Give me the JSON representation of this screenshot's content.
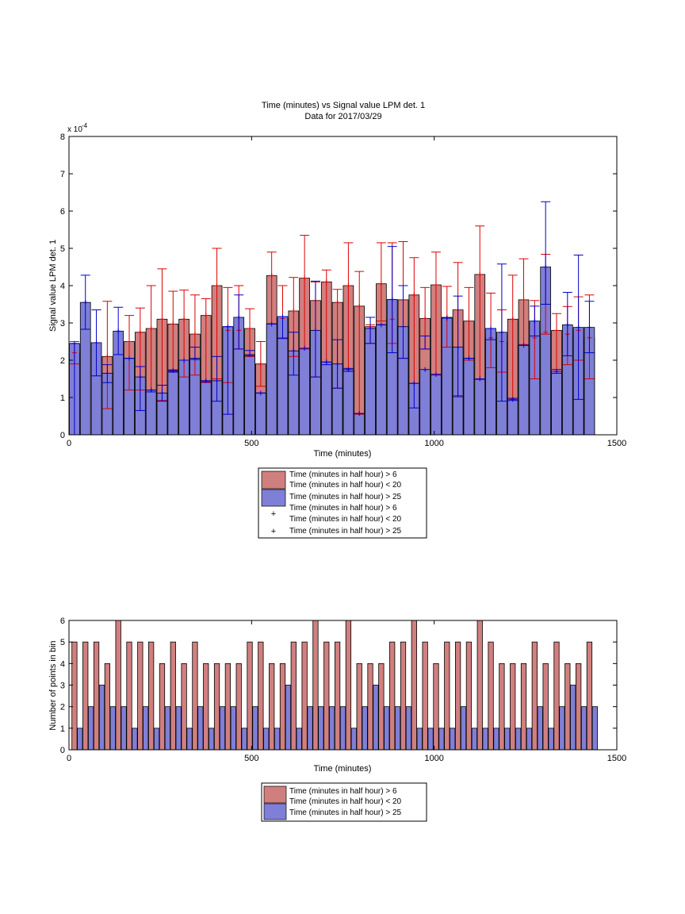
{
  "colors": {
    "group_a": "#d07f7f",
    "group_b": "#7f7fd7",
    "err_a": "#dd0000",
    "err_b": "#0000cc"
  },
  "chart_data": [
    {
      "type": "bar",
      "title": "Time (minutes) vs Signal value LPM det. 1",
      "subtitle": "Data for 2017/03/29",
      "xlabel": "Time (minutes)",
      "ylabel": "Signal value LPM det. 1",
      "y_exponent": "x 10^-4",
      "y_exponent_base": "x 10",
      "y_exponent_power": "-4",
      "xlim": [
        0,
        1500
      ],
      "ylim": [
        0,
        8
      ],
      "xticks": [
        "0",
        "500",
        "1000",
        "1500"
      ],
      "yticks": [
        "0",
        "1",
        "2",
        "3",
        "4",
        "5",
        "6",
        "7",
        "8"
      ],
      "grid": false,
      "legend_position": "below",
      "legend": [
        "Time (minutes in half hour) > 6\nTime (minutes in half hour) < 20",
        "Time (minutes in half hour) > 25",
        "Time (minutes in half hour) > 6\nTime (minutes in half hour) < 20",
        "Time (minutes in half hour) > 25"
      ],
      "series": [
        {
          "x": [
            15,
            105,
            165,
            195,
            225,
            255,
            285,
            315,
            345,
            375,
            405,
            435,
            465,
            495,
            525,
            555,
            585,
            615,
            645,
            675,
            705,
            735,
            765,
            795,
            825,
            855,
            885,
            915,
            945,
            975,
            1005,
            1035,
            1065,
            1095,
            1125,
            1155,
            1185,
            1215,
            1245,
            1275,
            1305,
            1335,
            1365,
            1395,
            1425
          ],
          "values": [
            2.2,
            2.1,
            2.5,
            2.75,
            2.85,
            3.1,
            2.97,
            3.1,
            2.7,
            3.2,
            4.0,
            2.8,
            2.8,
            2.85,
            1.9,
            4.27,
            3.12,
            3.32,
            4.2,
            3.6,
            4.1,
            3.55,
            4.0,
            3.45,
            2.9,
            4.05,
            3.1,
            3.62,
            3.75,
            3.12,
            4.02,
            3.15,
            3.35,
            3.05,
            4.3,
            2.6,
            2.5,
            3.1,
            3.62,
            2.6,
            2.75,
            2.8,
            2.7,
            2.8,
            2.6
          ],
          "err_low": [
            1.9,
            0.7,
            1.2,
            1.2,
            1.2,
            0.92,
            1.7,
            1.55,
            1.6,
            1.4,
            1.5,
            1.4,
            2.3,
            2.1,
            1.3,
            2.98,
            2.6,
            2.1,
            2.3,
            1.55,
            1.95,
            1.25,
            1.75,
            0.55,
            2.45,
            3.05,
            2.45,
            2.05,
            1.38,
            2.3,
            1.6,
            2.35,
            1.05,
            2.0,
            1.48,
            1.8,
            1.68,
            0.95,
            2.42,
            1.5,
            2.7,
            1.7,
            1.88,
            2.0,
            1.5
          ],
          "err_high": [
            2.5,
            3.58,
            3.2,
            3.4,
            4.0,
            4.45,
            3.85,
            3.88,
            3.75,
            3.65,
            5.0,
            3.95,
            4.0,
            3.38,
            2.5,
            4.9,
            4.0,
            4.22,
            5.35,
            4.1,
            4.42,
            3.9,
            5.15,
            4.38,
            2.95,
            5.15,
            5.15,
            5.18,
            4.75,
            3.95,
            4.9,
            3.98,
            4.62,
            3.95,
            5.6,
            3.8,
            3.35,
            4.28,
            4.72,
            3.6,
            4.84,
            3.25,
            3.44,
            3.7,
            3.75
          ]
        },
        {
          "x": [
            15,
            45,
            75,
            105,
            135,
            165,
            195,
            225,
            255,
            285,
            315,
            345,
            375,
            405,
            435,
            465,
            495,
            525,
            555,
            585,
            615,
            645,
            675,
            705,
            735,
            765,
            795,
            825,
            855,
            885,
            915,
            945,
            975,
            1005,
            1035,
            1065,
            1095,
            1125,
            1155,
            1185,
            1215,
            1245,
            1275,
            1305,
            1335,
            1365,
            1395,
            1425
          ],
          "values": [
            2.45,
            3.55,
            2.47,
            1.65,
            2.78,
            2.05,
            1.55,
            1.2,
            1.12,
            1.72,
            2.0,
            2.05,
            1.45,
            1.45,
            2.9,
            3.15,
            2.15,
            1.12,
            2.97,
            3.17,
            2.25,
            2.32,
            2.8,
            1.95,
            1.9,
            1.75,
            0.57,
            2.85,
            2.95,
            3.63,
            2.9,
            1.38,
            1.75,
            1.62,
            3.13,
            2.35,
            2.05,
            1.5,
            2.85,
            2.75,
            0.95,
            2.4,
            3.05,
            4.5,
            1.7,
            2.95,
            2.88,
            2.88
          ],
          "err_low": [
            0,
            2.83,
            1.58,
            1.4,
            2.15,
            2.05,
            0.65,
            1.15,
            0.9,
            1.68,
            2.0,
            2.02,
            1.42,
            0.9,
            0.55,
            2.3,
            2.12,
            1.12,
            2.97,
            2.58,
            1.6,
            2.32,
            1.55,
            1.88,
            1.25,
            1.7,
            0.57,
            2.45,
            2.95,
            2.2,
            2.05,
            0.72,
            2.3,
            1.62,
            3.13,
            1.02,
            2.05,
            1.5,
            2.55,
            0.9,
            0.92,
            2.4,
            2.65,
            3.5,
            1.65,
            2.12,
            0.95,
            2.2
          ],
          "err_high": [
            2.45,
            4.28,
            3.35,
            1.88,
            3.42,
            2.05,
            1.83,
            1.2,
            1.33,
            1.74,
            2.0,
            2.35,
            1.45,
            2.1,
            2.9,
            3.75,
            2.26,
            1.12,
            2.97,
            3.17,
            2.75,
            2.32,
            4.12,
            1.95,
            2.55,
            1.78,
            0.57,
            3.15,
            2.95,
            5.05,
            4.0,
            1.38,
            2.65,
            1.62,
            3.13,
            3.72,
            2.05,
            1.5,
            2.85,
            4.58,
            0.98,
            2.4,
            3.45,
            6.25,
            1.75,
            3.82,
            4.82,
            3.58
          ]
        }
      ]
    },
    {
      "type": "bar",
      "title": "",
      "xlabel": "Time (minutes)",
      "ylabel": "Number of points in bin",
      "xlim": [
        0,
        1500
      ],
      "ylim": [
        0,
        6
      ],
      "xticks": [
        "0",
        "500",
        "1000",
        "1500"
      ],
      "yticks": [
        "0",
        "1",
        "2",
        "3",
        "4",
        "5",
        "6"
      ],
      "grid": false,
      "legend_position": "below",
      "legend": [
        "Time (minutes in half hour) > 6\nTime (minutes in half hour) < 20",
        "Time (minutes in half hour) > 25"
      ],
      "series": [
        {
          "x": [
            15,
            45,
            75,
            105,
            135,
            165,
            195,
            225,
            255,
            285,
            315,
            345,
            375,
            405,
            435,
            465,
            495,
            525,
            555,
            585,
            615,
            645,
            675,
            705,
            735,
            765,
            795,
            825,
            855,
            885,
            915,
            945,
            975,
            1005,
            1035,
            1065,
            1095,
            1125,
            1155,
            1185,
            1215,
            1245,
            1275,
            1305,
            1335,
            1365,
            1395,
            1425
          ],
          "values": [
            5,
            5,
            5,
            4,
            6,
            5,
            5,
            5,
            4,
            5,
            4,
            5,
            4,
            4,
            4,
            4,
            5,
            5,
            4,
            4,
            5,
            5,
            6,
            5,
            5,
            6,
            4,
            4,
            4,
            5,
            5,
            6,
            5,
            4,
            5,
            5,
            5,
            6,
            5,
            4,
            4,
            4,
            5,
            4,
            5,
            4,
            4,
            5
          ]
        },
        {
          "x": [
            30,
            60,
            90,
            120,
            150,
            180,
            210,
            240,
            270,
            300,
            330,
            360,
            390,
            420,
            450,
            480,
            510,
            540,
            570,
            600,
            630,
            660,
            690,
            720,
            750,
            780,
            810,
            840,
            870,
            900,
            930,
            960,
            990,
            1020,
            1050,
            1080,
            1110,
            1140,
            1170,
            1200,
            1230,
            1260,
            1290,
            1320,
            1350,
            1380,
            1410,
            1440
          ],
          "values": [
            1,
            2,
            3,
            2,
            2,
            1,
            2,
            1,
            2,
            2,
            1,
            2,
            1,
            2,
            2,
            1,
            2,
            1,
            1,
            3,
            1,
            2,
            2,
            2,
            2,
            1,
            2,
            3,
            2,
            2,
            2,
            1,
            1,
            1,
            1,
            2,
            1,
            1,
            1,
            1,
            1,
            1,
            2,
            1,
            2,
            3,
            2,
            2
          ]
        }
      ]
    }
  ]
}
